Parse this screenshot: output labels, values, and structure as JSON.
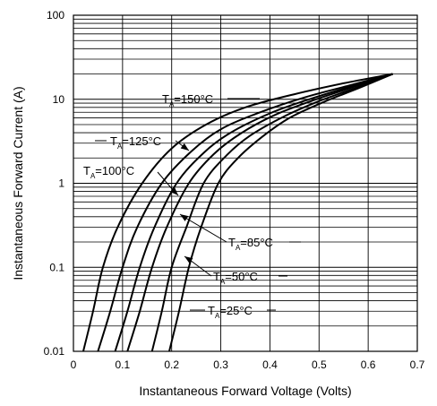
{
  "chart_data": {
    "type": "line",
    "title": "",
    "xlabel": "Instantaneous Forward Voltage (Volts)",
    "ylabel": "Instantaneous Forward Current (A)",
    "xlim": [
      0,
      0.7
    ],
    "ylim": [
      0.01,
      100
    ],
    "yscale": "log",
    "grid": true,
    "x_ticks": [
      "0",
      "0.1",
      "0.2",
      "0.3",
      "0.4",
      "0.5",
      "0.6",
      "0.7"
    ],
    "y_ticks": [
      "0.01",
      "0.1",
      "1",
      "10",
      "100"
    ],
    "series": [
      {
        "name": "TA=150°C",
        "label_sub": "A",
        "label_main": "=150°C",
        "points": [
          [
            0.02,
            0.01
          ],
          [
            0.04,
            0.03
          ],
          [
            0.06,
            0.1
          ],
          [
            0.09,
            0.3
          ],
          [
            0.14,
            1.0
          ],
          [
            0.2,
            2.6
          ],
          [
            0.27,
            5.0
          ],
          [
            0.35,
            8.0
          ],
          [
            0.45,
            11.5
          ],
          [
            0.55,
            15.5
          ],
          [
            0.65,
            20
          ]
        ]
      },
      {
        "name": "TA=125°C",
        "label_sub": "A",
        "label_main": "=125°C",
        "points": [
          [
            0.05,
            0.01
          ],
          [
            0.075,
            0.03
          ],
          [
            0.1,
            0.1
          ],
          [
            0.13,
            0.3
          ],
          [
            0.18,
            1.0
          ],
          [
            0.24,
            2.4
          ],
          [
            0.3,
            4.4
          ],
          [
            0.38,
            7.0
          ],
          [
            0.47,
            10.5
          ],
          [
            0.56,
            14.5
          ],
          [
            0.65,
            20
          ]
        ]
      },
      {
        "name": "TA=100°C",
        "label_sub": "A",
        "label_main": "=100°C",
        "points": [
          [
            0.085,
            0.01
          ],
          [
            0.11,
            0.03
          ],
          [
            0.135,
            0.1
          ],
          [
            0.165,
            0.3
          ],
          [
            0.21,
            1.0
          ],
          [
            0.265,
            2.3
          ],
          [
            0.32,
            4.0
          ],
          [
            0.4,
            6.8
          ],
          [
            0.48,
            10.0
          ],
          [
            0.57,
            14.5
          ],
          [
            0.65,
            20
          ]
        ]
      },
      {
        "name": "TA=85°C",
        "label_sub": "A",
        "label_main": "=85°C",
        "points": [
          [
            0.11,
            0.01
          ],
          [
            0.135,
            0.03
          ],
          [
            0.16,
            0.1
          ],
          [
            0.19,
            0.3
          ],
          [
            0.235,
            1.0
          ],
          [
            0.285,
            2.2
          ],
          [
            0.34,
            3.9
          ],
          [
            0.41,
            6.5
          ],
          [
            0.49,
            9.8
          ],
          [
            0.57,
            14.0
          ],
          [
            0.65,
            20
          ]
        ]
      },
      {
        "name": "TA=50°C",
        "label_sub": "A",
        "label_main": "=50°C",
        "points": [
          [
            0.16,
            0.01
          ],
          [
            0.18,
            0.03
          ],
          [
            0.2,
            0.1
          ],
          [
            0.23,
            0.3
          ],
          [
            0.265,
            1.0
          ],
          [
            0.31,
            2.1
          ],
          [
            0.36,
            3.7
          ],
          [
            0.43,
            6.3
          ],
          [
            0.5,
            9.5
          ],
          [
            0.58,
            14.0
          ],
          [
            0.65,
            20
          ]
        ]
      },
      {
        "name": "TA=25°C",
        "label_sub": "A",
        "label_main": "=25°C",
        "points": [
          [
            0.195,
            0.01
          ],
          [
            0.215,
            0.03
          ],
          [
            0.235,
            0.1
          ],
          [
            0.26,
            0.3
          ],
          [
            0.295,
            1.0
          ],
          [
            0.335,
            2.0
          ],
          [
            0.385,
            3.6
          ],
          [
            0.44,
            6.0
          ],
          [
            0.51,
            9.3
          ],
          [
            0.58,
            13.5
          ],
          [
            0.65,
            20
          ]
        ]
      }
    ]
  }
}
